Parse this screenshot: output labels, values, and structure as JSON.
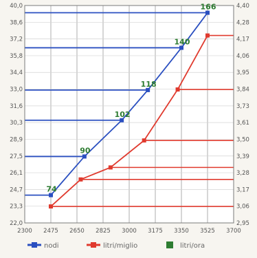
{
  "chart_data": {
    "type": "line",
    "title": "",
    "xlabel": "",
    "ylabel": "",
    "x_ticks": [
      "2300",
      "2475",
      "2650",
      "2825",
      "3000",
      "3175",
      "3350",
      "3525",
      "3700"
    ],
    "xlim": [
      2300,
      3700
    ],
    "y_left_ticks": [
      "40,0",
      "38,6",
      "37,2",
      "35,8",
      "34,4",
      "33,0",
      "31,6",
      "30,3",
      "28,9",
      "27,5",
      "26,1",
      "24,7",
      "23,3",
      "22,0"
    ],
    "y_left_lim": [
      22.0,
      40.0
    ],
    "y_right_ticks": [
      "4,40",
      "4,28",
      "4,17",
      "4,06",
      "3,95",
      "3,84",
      "3,73",
      "3,61",
      "3,50",
      "3,39",
      "3,28",
      "3,17",
      "3,06",
      "2,95"
    ],
    "y_right_lim": [
      2.95,
      4.4
    ],
    "grid": true,
    "series": [
      {
        "name": "nodi",
        "axis": "left",
        "color": "#2a4fc0",
        "x": [
          2475,
          2700,
          2950,
          3125,
          3350,
          3525
        ],
        "y": [
          24.3,
          27.5,
          30.5,
          33.0,
          36.5,
          39.4
        ],
        "labels": [
          "74",
          "90",
          "102",
          "118",
          "140",
          "166"
        ]
      },
      {
        "name": "litri/miglio",
        "axis": "right",
        "color": "#e03a2e",
        "x": [
          2475,
          2675,
          2875,
          3100,
          3325,
          3525
        ],
        "y": [
          3.06,
          3.24,
          3.32,
          3.5,
          3.84,
          4.2
        ],
        "labels": []
      }
    ],
    "legend": [
      {
        "name": "nodi",
        "color": "#2a4fc0",
        "marker": "line"
      },
      {
        "name": "litri/miglio",
        "color": "#e03a2e",
        "marker": "line"
      },
      {
        "name": "litri/ora",
        "color": "#2e7d32",
        "marker": "square"
      }
    ],
    "legend_position": "bottom"
  }
}
